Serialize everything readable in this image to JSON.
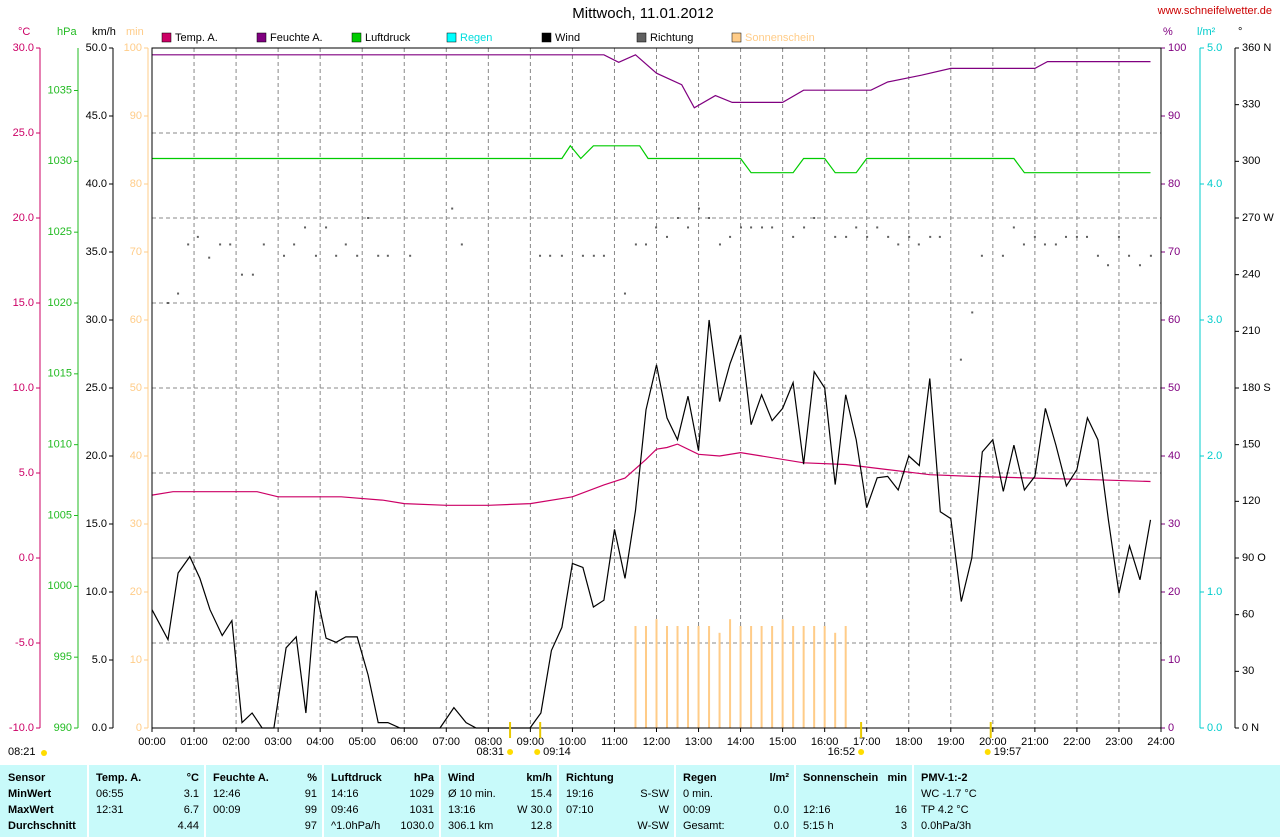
{
  "chart_data": {
    "type": "line",
    "title": "Mittwoch, 11.01.2012",
    "source": "www.schneifelwetter.de",
    "xlim": [
      0,
      24
    ],
    "xticks": [
      {
        "value": 0,
        "label": "00:00"
      },
      {
        "value": 1,
        "label": "01:00"
      },
      {
        "value": 2,
        "label": "02:00"
      },
      {
        "value": 3,
        "label": "03:00"
      },
      {
        "value": 4,
        "label": "04:00"
      },
      {
        "value": 5,
        "label": "05:00"
      },
      {
        "value": 6,
        "label": "06:00"
      },
      {
        "value": 7,
        "label": "07:00"
      },
      {
        "value": 8,
        "label": "08:00"
      },
      {
        "value": 9,
        "label": "09:00"
      },
      {
        "value": 10,
        "label": "10:00"
      },
      {
        "value": 11,
        "label": "11:00"
      },
      {
        "value": 12,
        "label": "12:00"
      },
      {
        "value": 13,
        "label": "13:00"
      },
      {
        "value": 14,
        "label": "14:00"
      },
      {
        "value": 15,
        "label": "15:00"
      },
      {
        "value": 16,
        "label": "16:00"
      },
      {
        "value": 17,
        "label": "17:00"
      },
      {
        "value": 18,
        "label": "18:00"
      },
      {
        "value": 19,
        "label": "19:00"
      },
      {
        "value": 20,
        "label": "20:00"
      },
      {
        "value": 21,
        "label": "21:00"
      },
      {
        "value": 22,
        "label": "22:00"
      },
      {
        "value": 23,
        "label": "23:00"
      },
      {
        "value": 24,
        "label": "24:00"
      }
    ],
    "grid": true,
    "yaxes": {
      "y": {
        "label": "°C",
        "color": "#cc0066",
        "ylim": [
          -10,
          30
        ],
        "yticks": [
          {
            "value": -10,
            "label": "-10.0"
          },
          {
            "value": -5,
            "label": "-5.0"
          },
          {
            "value": 0,
            "label": "0.0"
          },
          {
            "value": 5,
            "label": "5.0"
          },
          {
            "value": 10,
            "label": "10.0"
          },
          {
            "value": 15,
            "label": "15.0"
          },
          {
            "value": 20,
            "label": "20.0"
          },
          {
            "value": 25,
            "label": "25.0"
          },
          {
            "value": 30,
            "label": "30.0"
          }
        ]
      },
      "y2": {
        "label": "hPa",
        "color": "#22bb22",
        "ylim": [
          990,
          1038
        ],
        "yticks": [
          990,
          995,
          1000,
          1005,
          1010,
          1015,
          1020,
          1025,
          1030,
          1035
        ]
      },
      "y3": {
        "label": "km/h",
        "color": "#000000",
        "ylim": [
          0,
          50
        ],
        "yticks": [
          {
            "value": 0,
            "label": "0.0"
          },
          {
            "value": 5,
            "label": "5.0"
          },
          {
            "value": 10,
            "label": "10.0"
          },
          {
            "value": 15,
            "label": "15.0"
          },
          {
            "value": 20,
            "label": "20.0"
          },
          {
            "value": 25,
            "label": "25.0"
          },
          {
            "value": 30,
            "label": "30.0"
          },
          {
            "value": 35,
            "label": "35.0"
          },
          {
            "value": 40,
            "label": "40.0"
          },
          {
            "value": 45,
            "label": "45.0"
          },
          {
            "value": 50,
            "label": "50.0"
          }
        ]
      },
      "y4": {
        "label": "min",
        "color": "#ffcc88",
        "ylim": [
          0,
          100
        ],
        "yticks": [
          0,
          10,
          20,
          30,
          40,
          50,
          60,
          70,
          80,
          90,
          100
        ]
      },
      "y5": {
        "label": "%",
        "color": "#800080",
        "ylim": [
          0,
          100
        ],
        "yticks": [
          0,
          10,
          20,
          30,
          40,
          50,
          60,
          70,
          80,
          90,
          100
        ]
      },
      "y6": {
        "label": "l/m²",
        "color": "#00cccc",
        "ylim": [
          0,
          5
        ],
        "yticks": [
          {
            "value": 0,
            "label": "0.0"
          },
          {
            "value": 1,
            "label": "1.0"
          },
          {
            "value": 2,
            "label": "2.0"
          },
          {
            "value": 3,
            "label": "3.0"
          },
          {
            "value": 4,
            "label": "4.0"
          },
          {
            "value": 5,
            "label": "5.0"
          }
        ]
      },
      "y7": {
        "label": "°",
        "color": "#000000",
        "ylim": [
          0,
          360
        ],
        "yticks": [
          {
            "value": 0,
            "label": "0 N"
          },
          30,
          60,
          {
            "value": 90,
            "label": "90 O"
          },
          120,
          150,
          {
            "value": 180,
            "label": "180 S"
          },
          210,
          240,
          {
            "value": 270,
            "label": "270 W"
          },
          300,
          330,
          {
            "value": 360,
            "label": "360 N"
          }
        ]
      }
    },
    "series": [
      {
        "name": "Temp. A.",
        "type": "line",
        "axis": "y",
        "color": "#cc0066",
        "x": [
          0,
          0.5,
          2.5,
          3,
          4.5,
          5.5,
          6,
          7,
          8,
          9,
          10,
          10.75,
          11.25,
          11.75,
          12,
          12.25,
          12.5,
          13,
          13.5,
          14,
          14.5,
          15.5,
          16.5,
          17.5,
          18.5,
          19.5,
          21,
          22.5,
          23.75
        ],
        "values": [
          3.7,
          3.9,
          3.9,
          3.6,
          3.6,
          3.4,
          3.2,
          3.1,
          3.1,
          3.2,
          3.6,
          4.3,
          4.7,
          5.8,
          6.4,
          6.5,
          6.7,
          6.1,
          6.0,
          6.2,
          6.0,
          5.6,
          5.5,
          5.2,
          4.9,
          4.8,
          4.7,
          4.6,
          4.5
        ]
      },
      {
        "name": "Feuchte A.",
        "type": "line",
        "axis": "y5",
        "color": "#800080",
        "x": [
          0,
          10.75,
          11.1,
          11.5,
          12,
          12.6,
          12.9,
          13.4,
          13.8,
          15,
          15.5,
          17.1,
          17.5,
          18.3,
          19,
          21,
          21.3,
          23.75
        ],
        "values": [
          99,
          99,
          97.9,
          99,
          96.3,
          94.6,
          91.2,
          93,
          92,
          92,
          93.8,
          93.8,
          95,
          96,
          97,
          97,
          98,
          98
        ]
      },
      {
        "name": "Luftdruck",
        "type": "line",
        "axis": "y2",
        "color": "#00cc00",
        "x": [
          0,
          9.75,
          9.95,
          10.2,
          10.5,
          11.6,
          11.8,
          14,
          14.25,
          15.25,
          15.5,
          16,
          16.25,
          16.75,
          17,
          20.5,
          20.75,
          23.75
        ],
        "values": [
          1030.2,
          1030.2,
          1031.1,
          1030.2,
          1031.1,
          1031.1,
          1030.2,
          1030.2,
          1029.2,
          1029.2,
          1030.2,
          1030.2,
          1029.2,
          1029.2,
          1030.2,
          1030.2,
          1029.2,
          1029.2
        ]
      },
      {
        "name": "Regen",
        "type": "line",
        "axis": "y6",
        "color": "#00ffff",
        "label_color": "#00dddd",
        "x": [],
        "values": []
      },
      {
        "name": "Wind",
        "type": "line",
        "axis": "y3",
        "color": "#000000",
        "x": [
          0,
          0.38,
          0.62,
          0.9,
          1.14,
          1.38,
          1.67,
          1.9,
          2.14,
          2.38,
          2.62,
          2.9,
          3.19,
          3.43,
          3.66,
          3.9,
          4.14,
          4.38,
          4.61,
          4.88,
          5.14,
          5.38,
          5.61,
          5.9,
          6.85,
          7.18,
          7.47,
          7.71,
          8.99,
          9.25,
          9.5,
          9.75,
          10,
          10.25,
          10.5,
          10.75,
          11,
          11.25,
          11.5,
          11.75,
          12,
          12.25,
          12.5,
          12.75,
          13,
          13.25,
          13.5,
          13.75,
          14,
          14.25,
          14.5,
          14.75,
          15,
          15.25,
          15.5,
          15.75,
          16,
          16.25,
          16.5,
          16.75,
          17,
          17.25,
          17.5,
          17.75,
          18,
          18.25,
          18.5,
          18.75,
          19,
          19.25,
          19.5,
          19.75,
          20,
          20.25,
          20.5,
          20.75,
          21,
          21.25,
          21.5,
          21.75,
          22,
          22.25,
          22.5,
          22.75,
          23,
          23.25,
          23.5,
          23.75
        ],
        "values": [
          8.7,
          6.5,
          11.4,
          12.6,
          11.0,
          8.7,
          6.8,
          7.9,
          0.4,
          1.1,
          0,
          0,
          5.9,
          6.7,
          1.1,
          10.1,
          6.6,
          6.3,
          6.7,
          6.7,
          3.9,
          0.4,
          0.4,
          0,
          0,
          1.5,
          0.4,
          0,
          0,
          1.1,
          5.7,
          7.4,
          12.1,
          11.8,
          8.9,
          9.4,
          14.6,
          11.0,
          16.0,
          23.4,
          26.7,
          22.8,
          21.2,
          24.4,
          20.4,
          30.0,
          24.0,
          26.8,
          28.9,
          22.3,
          24.5,
          22.6,
          23.5,
          25.4,
          19.4,
          26.2,
          25.0,
          17.9,
          24.5,
          21.2,
          16.2,
          18.4,
          18.5,
          17.5,
          20.0,
          19.3,
          25.7,
          15.9,
          15.4,
          9.3,
          12.5,
          20.3,
          21.2,
          17.4,
          20.8,
          17.5,
          18.5,
          23.5,
          20.8,
          17.8,
          19.0,
          22.8,
          21.2,
          15.3,
          9.9,
          13.4,
          10.9,
          15.3
        ]
      },
      {
        "name": "Richtung",
        "type": "scatter",
        "axis": "y7",
        "color": "#606060",
        "x": [
          0.38,
          0.62,
          0.86,
          1.09,
          1.36,
          1.62,
          1.86,
          2.14,
          2.4,
          2.66,
          3.14,
          3.38,
          3.64,
          3.9,
          4.14,
          4.38,
          4.61,
          4.88,
          5.14,
          5.38,
          5.61,
          6.14,
          7.14,
          7.37,
          9.23,
          9.47,
          9.75,
          10.25,
          10.51,
          10.75,
          11.25,
          11.51,
          11.75,
          11.99,
          12.25,
          12.51,
          12.75,
          13.01,
          13.25,
          13.51,
          13.75,
          14.01,
          14.25,
          14.51,
          14.75,
          15.25,
          15.51,
          15.75,
          16.25,
          16.51,
          16.75,
          17.01,
          17.25,
          17.51,
          17.75,
          18.01,
          18.24,
          18.51,
          18.74,
          19.24,
          19.51,
          19.74,
          20.24,
          20.5,
          20.74,
          21.0,
          21.24,
          21.5,
          21.74,
          22.0,
          22.24,
          22.5,
          22.74,
          23.0,
          23.24,
          23.5,
          23.76
        ],
        "values": [
          225,
          230,
          256,
          260,
          249,
          256,
          256,
          240,
          240,
          256,
          250,
          256,
          265,
          250,
          265,
          250,
          256,
          250,
          270,
          250,
          250,
          250,
          275,
          256,
          250,
          250,
          250,
          250,
          250,
          250,
          230,
          256,
          256,
          265,
          260,
          270,
          265,
          275,
          270,
          256,
          260,
          265,
          265,
          265,
          265,
          260,
          265,
          270,
          260,
          260,
          265,
          260,
          265,
          260,
          256,
          260,
          256,
          260,
          260,
          195,
          220,
          250,
          250,
          265,
          256,
          260,
          256,
          256,
          260,
          260,
          260,
          250,
          245,
          260,
          250,
          245,
          250
        ]
      },
      {
        "name": "Sonnenschein",
        "type": "bar",
        "axis": "y4",
        "color": "#ffcc88",
        "label_color": "#ffcc88",
        "x": [
          11.5,
          11.75,
          12,
          12.25,
          12.5,
          12.75,
          13,
          13.25,
          13.5,
          13.75,
          14,
          14.25,
          14.5,
          14.75,
          15,
          15.25,
          15.5,
          15.75,
          16,
          16.25,
          16.5
        ],
        "values": [
          15,
          15,
          16,
          15,
          15,
          15,
          15,
          15,
          14,
          16,
          15,
          15,
          15,
          15,
          16,
          15,
          15,
          15,
          15,
          14,
          15
        ]
      }
    ],
    "time_left": "08:21",
    "sun_times": [
      "08:31",
      "09:14",
      "16:52",
      "19:57"
    ]
  },
  "table": {
    "header": [
      "Sensor",
      "Temp. A.",
      "°C",
      "Feuchte A.",
      "%",
      "Luftdruck",
      "hPa",
      "Wind",
      "km/h",
      "Richtung",
      null,
      "Regen",
      "l/m²",
      "Sonnenschein",
      "min",
      "PMV-1:-2",
      null
    ],
    "rows": [
      [
        "MinWert",
        "06:55",
        "3.1",
        "12:46",
        "91",
        "14:16",
        "1029",
        "Ø 10 min.",
        "15.4",
        "19:16",
        "S-SW",
        "0 min.",
        null,
        null,
        null,
        "WC -1.7 °C",
        null
      ],
      [
        "MaxWert",
        "12:31",
        "6.7",
        "00:09",
        "99",
        "09:46",
        "1031",
        "13:16",
        "W 30.0",
        "07:10",
        "W",
        "00:09",
        "0.0",
        "12:16",
        "16",
        "TP 4.2 °C",
        null
      ],
      [
        "Durchschnitt",
        null,
        "4.44",
        null,
        "97",
        "^1.0hPa/h",
        "1030.0",
        "306.1 km",
        "12.8",
        null,
        "W-SW",
        "Gesamt:",
        "0.0",
        "5:15 h",
        "3",
        "0.0hPa/3h",
        null
      ]
    ]
  }
}
